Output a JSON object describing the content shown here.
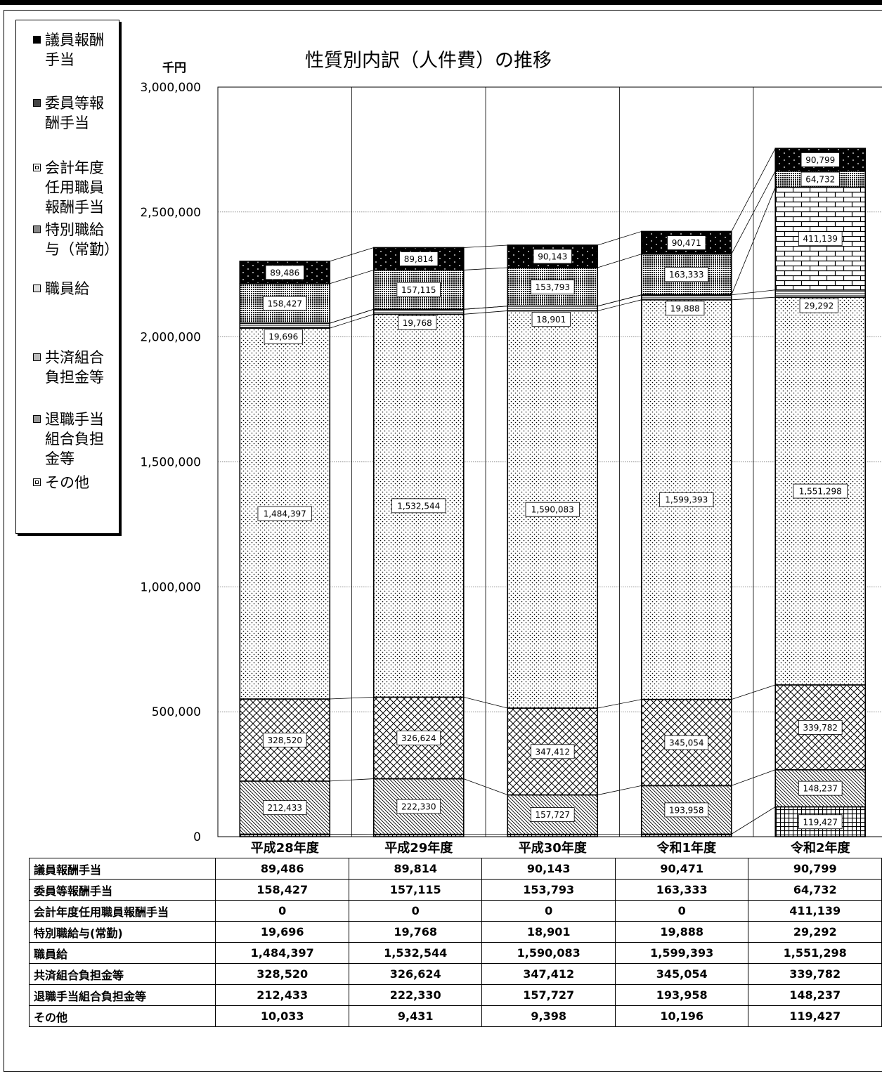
{
  "chart_data": {
    "type": "bar",
    "stacked": true,
    "title": "性質別内訳（人件費）の推移",
    "unit": "千円",
    "ylim": [
      0,
      3000000
    ],
    "yticks": [
      "3,000,000",
      "2,500,000",
      "2,000,000",
      "1,500,000",
      "1,000,000",
      "500,000",
      "0"
    ],
    "categories": [
      "平成28年度",
      "平成29年度",
      "平成30年度",
      "令和1年度",
      "令和2年度"
    ],
    "series": [
      {
        "name": "その他",
        "values": [
          10033,
          9431,
          9398,
          10196,
          119427
        ],
        "labels": [
          "",
          "",
          "",
          "",
          "119,427"
        ],
        "pattern": "grid"
      },
      {
        "name": "退職手当組合負担金等",
        "values": [
          212433,
          222330,
          157727,
          193958,
          148237
        ],
        "labels": [
          "212,433",
          "222,330",
          "157,727",
          "193,958",
          "148,237"
        ],
        "pattern": "diag"
      },
      {
        "name": "共済組合負担金等",
        "values": [
          328520,
          326624,
          347412,
          345054,
          339782
        ],
        "labels": [
          "328,520",
          "326,624",
          "347,412",
          "345,054",
          "339,782"
        ],
        "pattern": "cross"
      },
      {
        "name": "職員給",
        "values": [
          1484397,
          1532544,
          1590083,
          1599393,
          1551298
        ],
        "labels": [
          "1,484,397",
          "1,532,544",
          "1,590,083",
          "1,599,393",
          "1,551,298"
        ],
        "pattern": "dots"
      },
      {
        "name": "特別職給与（常勤）",
        "values": [
          19696,
          19768,
          18901,
          19888,
          29292
        ],
        "labels": [
          "19,696",
          "19,768",
          "18,901",
          "19,888",
          "29,292"
        ],
        "pattern": "hlines"
      },
      {
        "name": "会計年度任用職員報酬手当",
        "values": [
          0,
          0,
          0,
          0,
          411139
        ],
        "labels": [
          "",
          "",
          "",
          "",
          "411,139"
        ],
        "pattern": "brick"
      },
      {
        "name": "委員等報酬手当",
        "values": [
          158427,
          157115,
          153793,
          163333,
          64732
        ],
        "labels": [
          "158,427",
          "157,115",
          "153,793",
          "163,333",
          "64,732"
        ],
        "pattern": "dense"
      },
      {
        "name": "議員報酬手当",
        "values": [
          89486,
          89814,
          90143,
          90471,
          90799
        ],
        "labels": [
          "89,486",
          "89,814",
          "90,143",
          "90,471",
          "90,799"
        ],
        "pattern": "black"
      }
    ],
    "grid": true,
    "legend_position": "left"
  },
  "legend": [
    {
      "label": "議員報酬\n手当",
      "pattern": "black"
    },
    {
      "label": "委員等報\n酬手当",
      "pattern": "dense"
    },
    {
      "label": "会計年度\n任用職員\n報酬手当",
      "pattern": "brick"
    },
    {
      "label": "特別職給\n与（常勤）",
      "pattern": "hlines"
    },
    {
      "label": "職員給",
      "pattern": "dots"
    },
    {
      "label": "共済組合\n負担金等",
      "pattern": "cross"
    },
    {
      "label": "退職手当\n組合負担\n金等",
      "pattern": "diag"
    },
    {
      "label": "その他",
      "pattern": "grid"
    }
  ],
  "table": {
    "rows": [
      {
        "label": "議員報酬手当",
        "values": [
          "89,486",
          "89,814",
          "90,143",
          "90,471",
          "90,799"
        ]
      },
      {
        "label": "委員等報酬手当",
        "values": [
          "158,427",
          "157,115",
          "153,793",
          "163,333",
          "64,732"
        ]
      },
      {
        "label": "会計年度任用職員報酬手当",
        "values": [
          "0",
          "0",
          "0",
          "0",
          "411,139"
        ]
      },
      {
        "label": "特別職給与(常勤)",
        "values": [
          "19,696",
          "19,768",
          "18,901",
          "19,888",
          "29,292"
        ]
      },
      {
        "label": "職員給",
        "values": [
          "1,484,397",
          "1,532,544",
          "1,590,083",
          "1,599,393",
          "1,551,298"
        ]
      },
      {
        "label": "共済組合負担金等",
        "values": [
          "328,520",
          "326,624",
          "347,412",
          "345,054",
          "339,782"
        ]
      },
      {
        "label": "退職手当組合負担金等",
        "values": [
          "212,433",
          "222,330",
          "157,727",
          "193,958",
          "148,237"
        ]
      },
      {
        "label": "その他",
        "values": [
          "10,033",
          "9,431",
          "9,398",
          "10,196",
          "119,427"
        ]
      }
    ]
  }
}
